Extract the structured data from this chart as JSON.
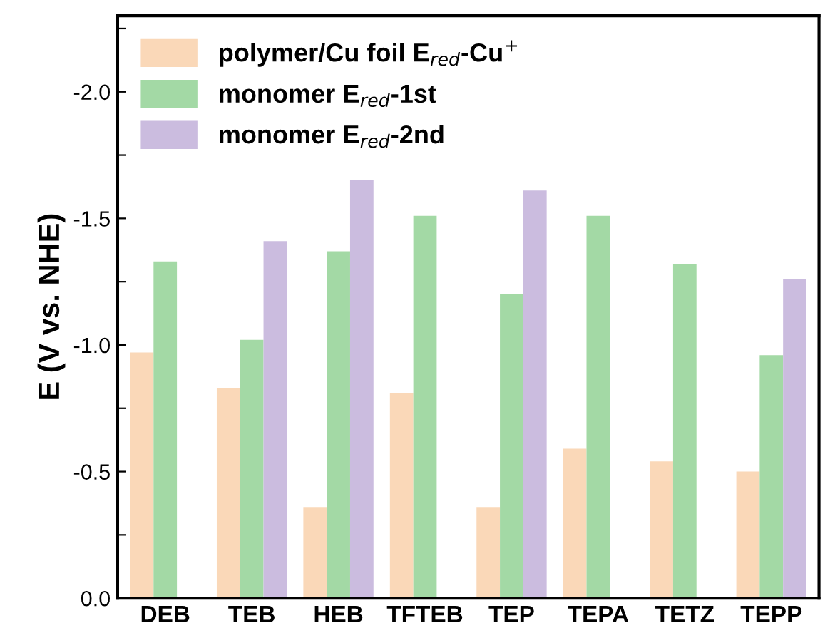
{
  "chart_data": {
    "type": "bar",
    "ylabel": "E (V vs. NHE)",
    "categories": [
      "DEB",
      "TEB",
      "HEB",
      "TFTEB",
      "TEP",
      "TEPA",
      "TETZ",
      "TEPP"
    ],
    "series": [
      {
        "name": "polymer/Cu foil E$_{red}$-Cu$^{+}$",
        "color": "#fad8b8",
        "values": [
          -0.97,
          -0.83,
          -0.36,
          -0.81,
          -0.36,
          -0.59,
          -0.54,
          -0.5
        ]
      },
      {
        "name": "monomer E$_{red}$-1st",
        "color": "#a3d9a5",
        "values": [
          -1.33,
          -1.02,
          -1.37,
          -1.51,
          -1.2,
          -1.51,
          -1.32,
          -0.96
        ]
      },
      {
        "name": "monomer E$_{red}$-2nd",
        "color": "#cbbcdf",
        "values": [
          null,
          -1.41,
          -1.65,
          null,
          -1.61,
          null,
          null,
          -1.26
        ]
      }
    ],
    "ylim": [
      0,
      -2.3
    ],
    "yticks": [
      {
        "value": 0,
        "label": "0.0"
      },
      {
        "value": -0.25,
        "label": null
      },
      {
        "value": -0.5,
        "label": "-0.5"
      },
      {
        "value": -0.75,
        "label": null
      },
      {
        "value": -1.0,
        "label": "-1.0"
      },
      {
        "value": -1.25,
        "label": null
      },
      {
        "value": -1.5,
        "label": "-1.5"
      },
      {
        "value": -1.75,
        "label": null
      },
      {
        "value": -2.0,
        "label": "-2.0"
      },
      {
        "value": -2.25,
        "label": null
      }
    ],
    "legend": "top left",
    "grid": false
  }
}
